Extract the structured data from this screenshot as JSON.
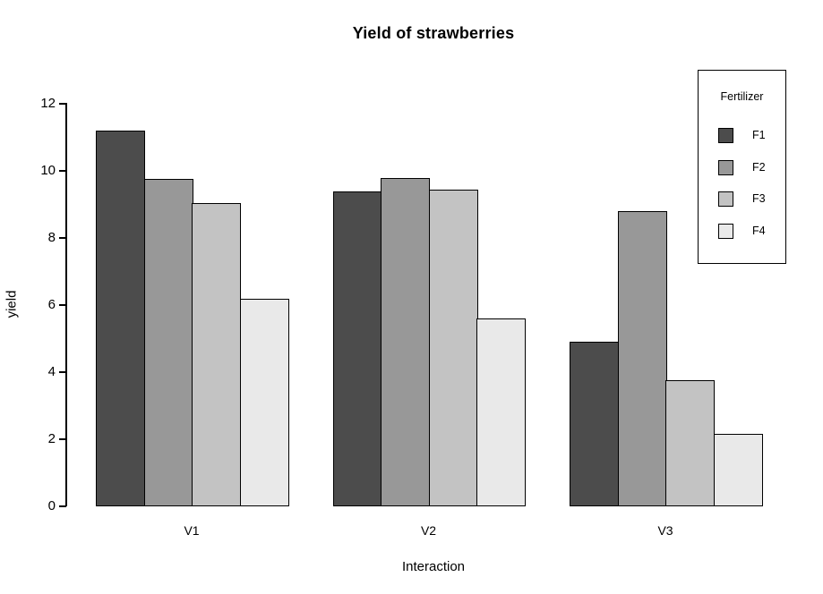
{
  "window": {
    "background": "#FFFFFF"
  },
  "chart_data": {
    "type": "bar",
    "title": "Yield of strawberries",
    "xlabel": "Interaction",
    "ylabel": "yield",
    "categories": [
      "V1",
      "V2",
      "V3"
    ],
    "series": [
      {
        "name": "F1",
        "color": "#4C4C4C",
        "values": [
          11.2,
          9.4,
          4.9
        ]
      },
      {
        "name": "F2",
        "color": "#989898",
        "values": [
          9.75,
          9.8,
          8.8
        ]
      },
      {
        "name": "F3",
        "color": "#C3C3C3",
        "values": [
          9.05,
          9.45,
          3.75
        ]
      },
      {
        "name": "F4",
        "color": "#E9E9E9",
        "values": [
          6.2,
          5.6,
          2.15
        ]
      }
    ],
    "ylim": [
      0,
      12
    ],
    "yticks": [
      0,
      2,
      4,
      6,
      8,
      10,
      12
    ],
    "legend": {
      "title": "Fertilizer",
      "entries": [
        "F1",
        "F2",
        "F3",
        "F4"
      ],
      "position": "top-right"
    },
    "grid": false,
    "bar_border_color": "#000000",
    "axis_color": "#000000"
  }
}
